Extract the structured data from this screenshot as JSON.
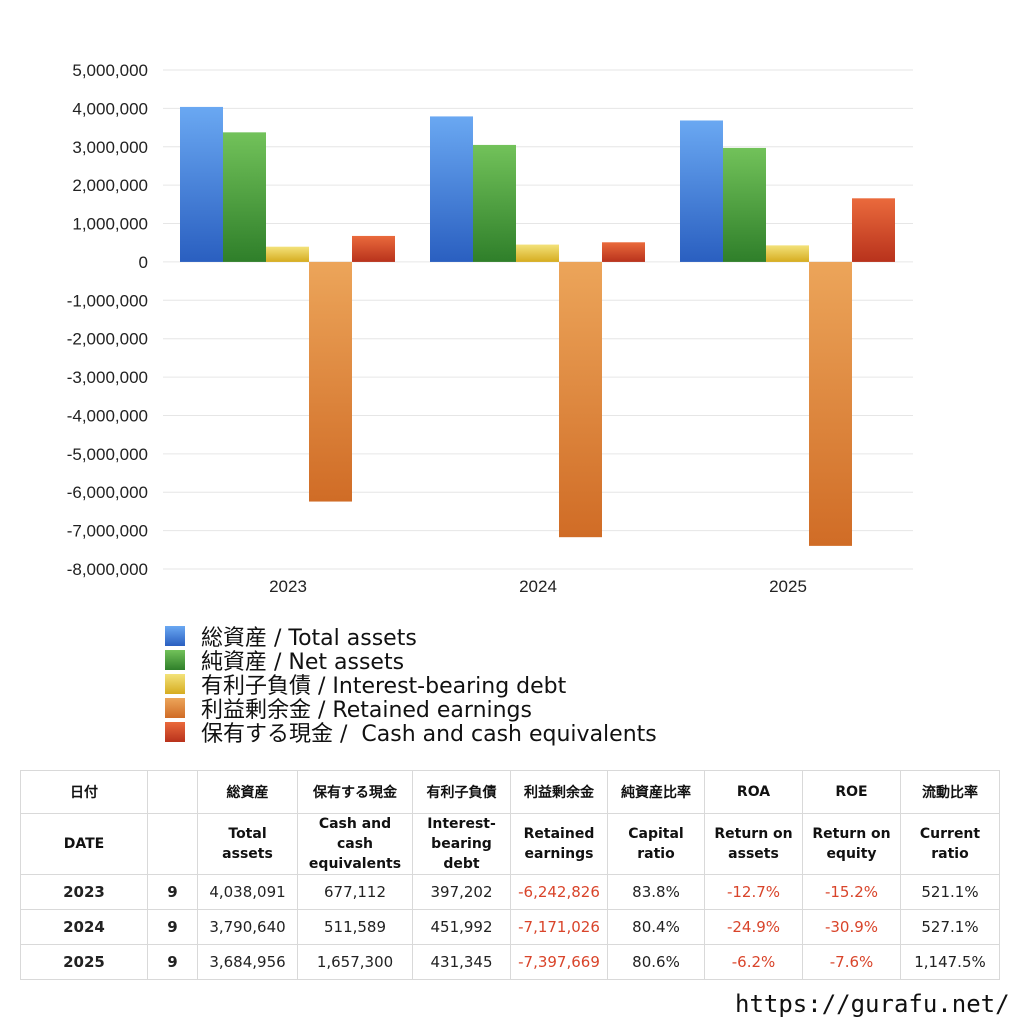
{
  "chart_data": {
    "type": "bar",
    "categories": [
      "2023",
      "2024",
      "2025"
    ],
    "ylim": [
      -8000000,
      5000000
    ],
    "ytick_step": 1000000,
    "grid": true,
    "legend_position": "bottom",
    "series": [
      {
        "name": "総資産 / Total assets",
        "color": "#3f82e0",
        "values": [
          4038091,
          3790640,
          3684956
        ]
      },
      {
        "name": "純資産 / Net assets",
        "color": "#47a23a",
        "values": [
          3376000,
          3048000,
          2970000
        ]
      },
      {
        "name": "有利子負債 / Interest-bearing debt",
        "color": "#e2c43a",
        "values": [
          397202,
          451992,
          431345
        ]
      },
      {
        "name": "利益剰余金 / Retained earnings",
        "color": "#e38f3a",
        "values": [
          -6242826,
          -7171026,
          -7397669
        ]
      },
      {
        "name": "保有する現金 /  Cash and cash equivalents",
        "color": "#d5462a",
        "values": [
          677112,
          511589,
          1657300
        ]
      }
    ],
    "ytick_labels": [
      "5,000,000",
      "4,000,000",
      "3,000,000",
      "2,000,000",
      "1,000,000",
      "0",
      "-1,000,000",
      "-2,000,000",
      "-3,000,000",
      "-4,000,000",
      "-5,000,000",
      "-6,000,000",
      "-7,000,000",
      "-8,000,000"
    ]
  },
  "table": {
    "header_ja": [
      "日付",
      "",
      "総資産",
      "保有する現金",
      "有利子負債",
      "利益剰余金",
      "純資産比率",
      "ROA",
      "ROE",
      "流動比率"
    ],
    "header_en": [
      [
        "DATE"
      ],
      [
        ""
      ],
      [
        "Total assets"
      ],
      [
        "Cash and cash",
        "equivalents"
      ],
      [
        "Interest-",
        "bearing",
        "debt"
      ],
      [
        "Retained",
        "earnings"
      ],
      [
        "Capital ratio"
      ],
      [
        "Return on",
        "assets"
      ],
      [
        "Return on",
        "equity"
      ],
      [
        "Current",
        "ratio"
      ]
    ],
    "rows": [
      {
        "year": "2023",
        "month": "9",
        "total_assets": "4,038,091",
        "cash": "677,112",
        "debt": "397,202",
        "retained": "-6,242,826",
        "capital_ratio": "83.8%",
        "roa": "-12.7%",
        "roe": "-15.2%",
        "current_ratio": "521.1%"
      },
      {
        "year": "2024",
        "month": "9",
        "total_assets": "3,790,640",
        "cash": "511,589",
        "debt": "451,992",
        "retained": "-7,171,026",
        "capital_ratio": "80.4%",
        "roa": "-24.9%",
        "roe": "-30.9%",
        "current_ratio": "527.1%"
      },
      {
        "year": "2025",
        "month": "9",
        "total_assets": "3,684,956",
        "cash": "1,657,300",
        "debt": "431,345",
        "retained": "-7,397,669",
        "capital_ratio": "80.6%",
        "roa": "-6.2%",
        "roe": "-7.6%",
        "current_ratio": "1,147.5%"
      }
    ]
  },
  "site": "https://gurafu.net/"
}
